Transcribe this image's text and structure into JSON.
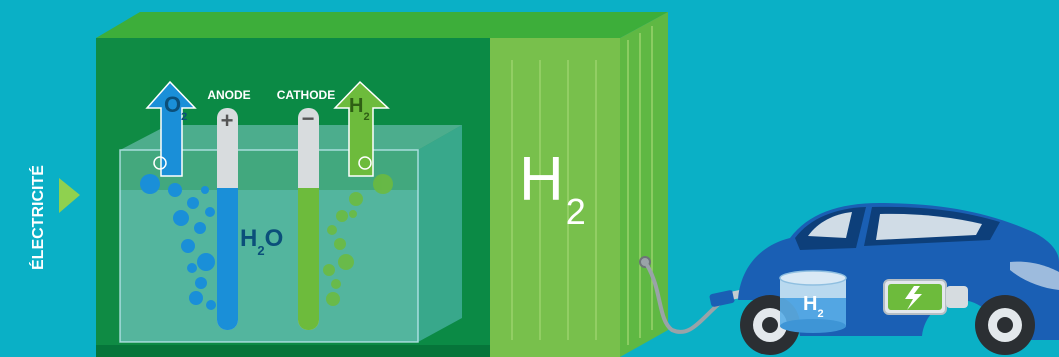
{
  "side_label": "ÉLECTRICITÉ",
  "anode": {
    "label": "ANODE",
    "sign": "+"
  },
  "cathode": {
    "label": "CATHODE",
    "sign": "−"
  },
  "oxygen": {
    "symbol": "O",
    "subscript": "2"
  },
  "hydrogen_arrow": {
    "symbol": "H",
    "subscript": "2"
  },
  "water": {
    "symbol_h": "H",
    "subscript": "2",
    "symbol_o": "O"
  },
  "container_label": {
    "symbol": "H",
    "subscript": "2"
  },
  "car_tank_label": {
    "symbol": "H",
    "subscript": "2"
  },
  "colors": {
    "background": "#0ab0c6",
    "container_dark": "#0e8a45",
    "container_light": "#7cc04b",
    "oxygen_blue": "#1a8fd8",
    "hydrogen_green": "#6dbb3c",
    "car_blue": "#1a5fb4"
  }
}
